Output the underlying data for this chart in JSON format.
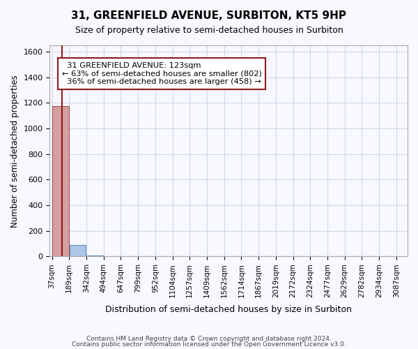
{
  "title": "31, GREENFIELD AVENUE, SURBITON, KT5 9HP",
  "subtitle": "Size of property relative to semi-detached houses in Surbiton",
  "xlabel": "Distribution of semi-detached houses by size in Surbiton",
  "ylabel": "Number of semi-detached properties",
  "property_size": 123,
  "property_label": "31 GREENFIELD AVENUE: 123sqm",
  "pct_smaller": 63,
  "n_smaller": 802,
  "pct_larger": 36,
  "n_larger": 458,
  "bin_edges": [
    37,
    189,
    342,
    494,
    647,
    799,
    952,
    1104,
    1257,
    1409,
    1562,
    1714,
    1867,
    2019,
    2172,
    2324,
    2477,
    2629,
    2782,
    2934,
    3087
  ],
  "bar_values": [
    1175,
    90,
    10,
    2,
    1,
    0,
    0,
    0,
    0,
    0,
    0,
    0,
    0,
    0,
    0,
    0,
    0,
    0,
    0,
    0
  ],
  "bar_color": "#aec6e8",
  "bar_edge_color": "#5c8fbd",
  "bar_highlight_color": "#d4a0a0",
  "bar_highlight_edge_color": "#a05050",
  "vline_color": "#8b1a1a",
  "annotation_box_color": "#8b1a1a",
  "grid_color": "#d0d8e8",
  "ylim": [
    0,
    1650
  ],
  "yticks": [
    0,
    200,
    400,
    600,
    800,
    1000,
    1200,
    1400,
    1600
  ],
  "footer_line1": "Contains HM Land Registry data © Crown copyright and database right 2024.",
  "footer_line2": "Contains public sector information licensed under the Open Government Licence v3.0.",
  "background_color": "#f8f8ff"
}
